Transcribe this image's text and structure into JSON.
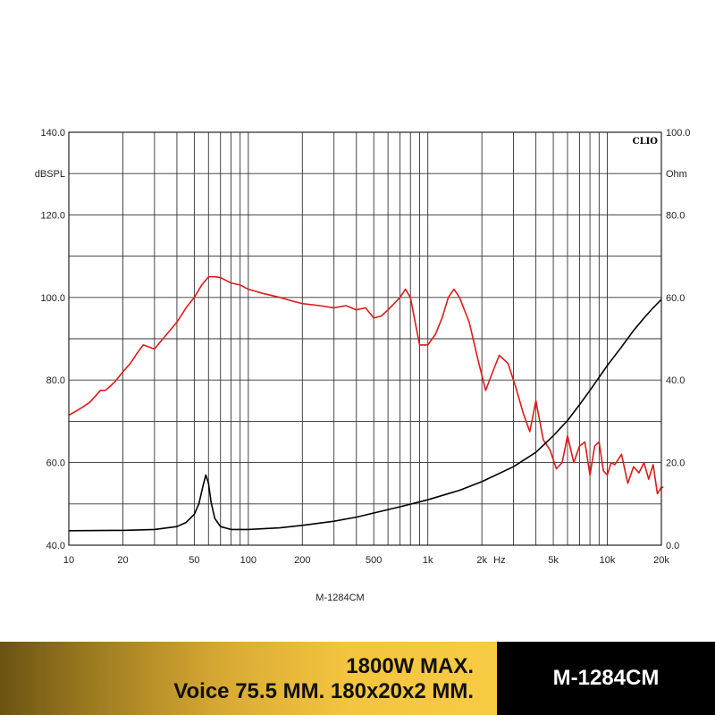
{
  "chart_data": {
    "type": "line",
    "brand": "CLIO",
    "title": "M-1284CM",
    "x_axis": {
      "scale": "log",
      "range": [
        10,
        20000
      ],
      "unit_label": "Hz",
      "ticks": [
        {
          "value": 10,
          "label": "10"
        },
        {
          "value": 20,
          "label": "20"
        },
        {
          "value": 50,
          "label": "50"
        },
        {
          "value": 100,
          "label": "100"
        },
        {
          "value": 200,
          "label": "200"
        },
        {
          "value": 500,
          "label": "500"
        },
        {
          "value": 1000,
          "label": "1k"
        },
        {
          "value": 2000,
          "label": "2k"
        },
        {
          "value": 5000,
          "label": "5k"
        },
        {
          "value": 10000,
          "label": "10k"
        },
        {
          "value": 20000,
          "label": "20k"
        }
      ]
    },
    "y_left": {
      "label": "dBSPL",
      "range": [
        40,
        140
      ],
      "ticks": [
        {
          "value": 40,
          "label": "40.0"
        },
        {
          "value": 60,
          "label": "60.0"
        },
        {
          "value": 80,
          "label": "80.0"
        },
        {
          "value": 100,
          "label": "100.0"
        },
        {
          "value": 120,
          "label": "120.0"
        },
        {
          "value": 140,
          "label": "140.0"
        }
      ]
    },
    "y_right": {
      "label": "Ohm",
      "range": [
        0,
        100
      ],
      "ticks": [
        {
          "value": 0,
          "label": "0.0"
        },
        {
          "value": 20,
          "label": "20.0"
        },
        {
          "value": 40,
          "label": "40.0"
        },
        {
          "value": 60,
          "label": "60.0"
        },
        {
          "value": 80,
          "label": "80.0"
        },
        {
          "value": 100,
          "label": "100.0"
        }
      ]
    },
    "grid": true,
    "series": [
      {
        "color": "#e01a1a",
        "axis": "left",
        "points": [
          [
            10,
            71.5
          ],
          [
            11,
            72.5
          ],
          [
            12,
            73.5
          ],
          [
            13,
            74.5
          ],
          [
            14,
            76
          ],
          [
            15,
            77.5
          ],
          [
            16,
            77.5
          ],
          [
            17,
            78.5
          ],
          [
            18,
            79.5
          ],
          [
            20,
            82
          ],
          [
            22,
            84
          ],
          [
            24,
            86.5
          ],
          [
            26,
            88.5
          ],
          [
            28,
            88
          ],
          [
            30,
            87.5
          ],
          [
            32,
            89
          ],
          [
            35,
            91
          ],
          [
            40,
            94
          ],
          [
            45,
            97.5
          ],
          [
            50,
            100
          ],
          [
            55,
            103
          ],
          [
            60,
            105
          ],
          [
            65,
            105
          ],
          [
            70,
            104.8
          ],
          [
            80,
            103.5
          ],
          [
            90,
            103
          ],
          [
            100,
            102
          ],
          [
            120,
            101
          ],
          [
            150,
            100
          ],
          [
            180,
            99
          ],
          [
            200,
            98.5
          ],
          [
            250,
            98
          ],
          [
            300,
            97.5
          ],
          [
            350,
            98
          ],
          [
            400,
            97
          ],
          [
            450,
            97.5
          ],
          [
            500,
            95
          ],
          [
            550,
            95.5
          ],
          [
            600,
            97
          ],
          [
            700,
            100
          ],
          [
            750,
            102
          ],
          [
            800,
            100
          ],
          [
            850,
            94
          ],
          [
            900,
            88.5
          ],
          [
            1000,
            88.5
          ],
          [
            1100,
            91
          ],
          [
            1200,
            95
          ],
          [
            1300,
            100
          ],
          [
            1400,
            102
          ],
          [
            1500,
            100
          ],
          [
            1700,
            94
          ],
          [
            1900,
            85
          ],
          [
            2100,
            77.5
          ],
          [
            2300,
            82
          ],
          [
            2500,
            86
          ],
          [
            2800,
            84
          ],
          [
            3100,
            78
          ],
          [
            3400,
            72
          ],
          [
            3700,
            67.5
          ],
          [
            4000,
            75
          ],
          [
            4400,
            65.5
          ],
          [
            4800,
            63
          ],
          [
            5200,
            58.5
          ],
          [
            5600,
            60
          ],
          [
            6000,
            66.5
          ],
          [
            6500,
            60
          ],
          [
            7000,
            64
          ],
          [
            7500,
            65
          ],
          [
            8000,
            57
          ],
          [
            8500,
            64
          ],
          [
            9000,
            65
          ],
          [
            9500,
            58
          ],
          [
            10000,
            57
          ],
          [
            10500,
            60
          ],
          [
            11000,
            59.5
          ],
          [
            12000,
            62
          ],
          [
            13000,
            55
          ],
          [
            14000,
            59
          ],
          [
            15000,
            57.5
          ],
          [
            16000,
            60
          ],
          [
            17000,
            56
          ],
          [
            18000,
            59.5
          ],
          [
            19000,
            52.5
          ],
          [
            20000,
            54
          ],
          [
            20500,
            54
          ]
        ]
      },
      {
        "color": "#000000",
        "axis": "right",
        "points": [
          [
            10,
            3.5
          ],
          [
            20,
            3.6
          ],
          [
            30,
            3.8
          ],
          [
            40,
            4.5
          ],
          [
            45,
            5.5
          ],
          [
            50,
            7.5
          ],
          [
            53,
            10
          ],
          [
            56,
            14.5
          ],
          [
            58,
            17
          ],
          [
            60,
            15
          ],
          [
            62,
            10.5
          ],
          [
            65,
            6.5
          ],
          [
            70,
            4.5
          ],
          [
            80,
            3.8
          ],
          [
            100,
            3.8
          ],
          [
            150,
            4.2
          ],
          [
            200,
            4.8
          ],
          [
            300,
            5.8
          ],
          [
            400,
            6.8
          ],
          [
            500,
            7.8
          ],
          [
            700,
            9.3
          ],
          [
            1000,
            11
          ],
          [
            1500,
            13.3
          ],
          [
            2000,
            15.4
          ],
          [
            3000,
            19
          ],
          [
            4000,
            22.5
          ],
          [
            5000,
            26.5
          ],
          [
            6000,
            30.2
          ],
          [
            7000,
            34
          ],
          [
            8000,
            37.5
          ],
          [
            10000,
            43.5
          ],
          [
            12000,
            48
          ],
          [
            14000,
            52
          ],
          [
            16000,
            55
          ],
          [
            18000,
            57.5
          ],
          [
            20000,
            59.5
          ]
        ]
      }
    ]
  },
  "footer": {
    "spec_line_1": "1800W MAX.",
    "spec_line_2": "Voice 75.5 MM. 180x20x2 MM.",
    "model": "M-1284CM"
  }
}
